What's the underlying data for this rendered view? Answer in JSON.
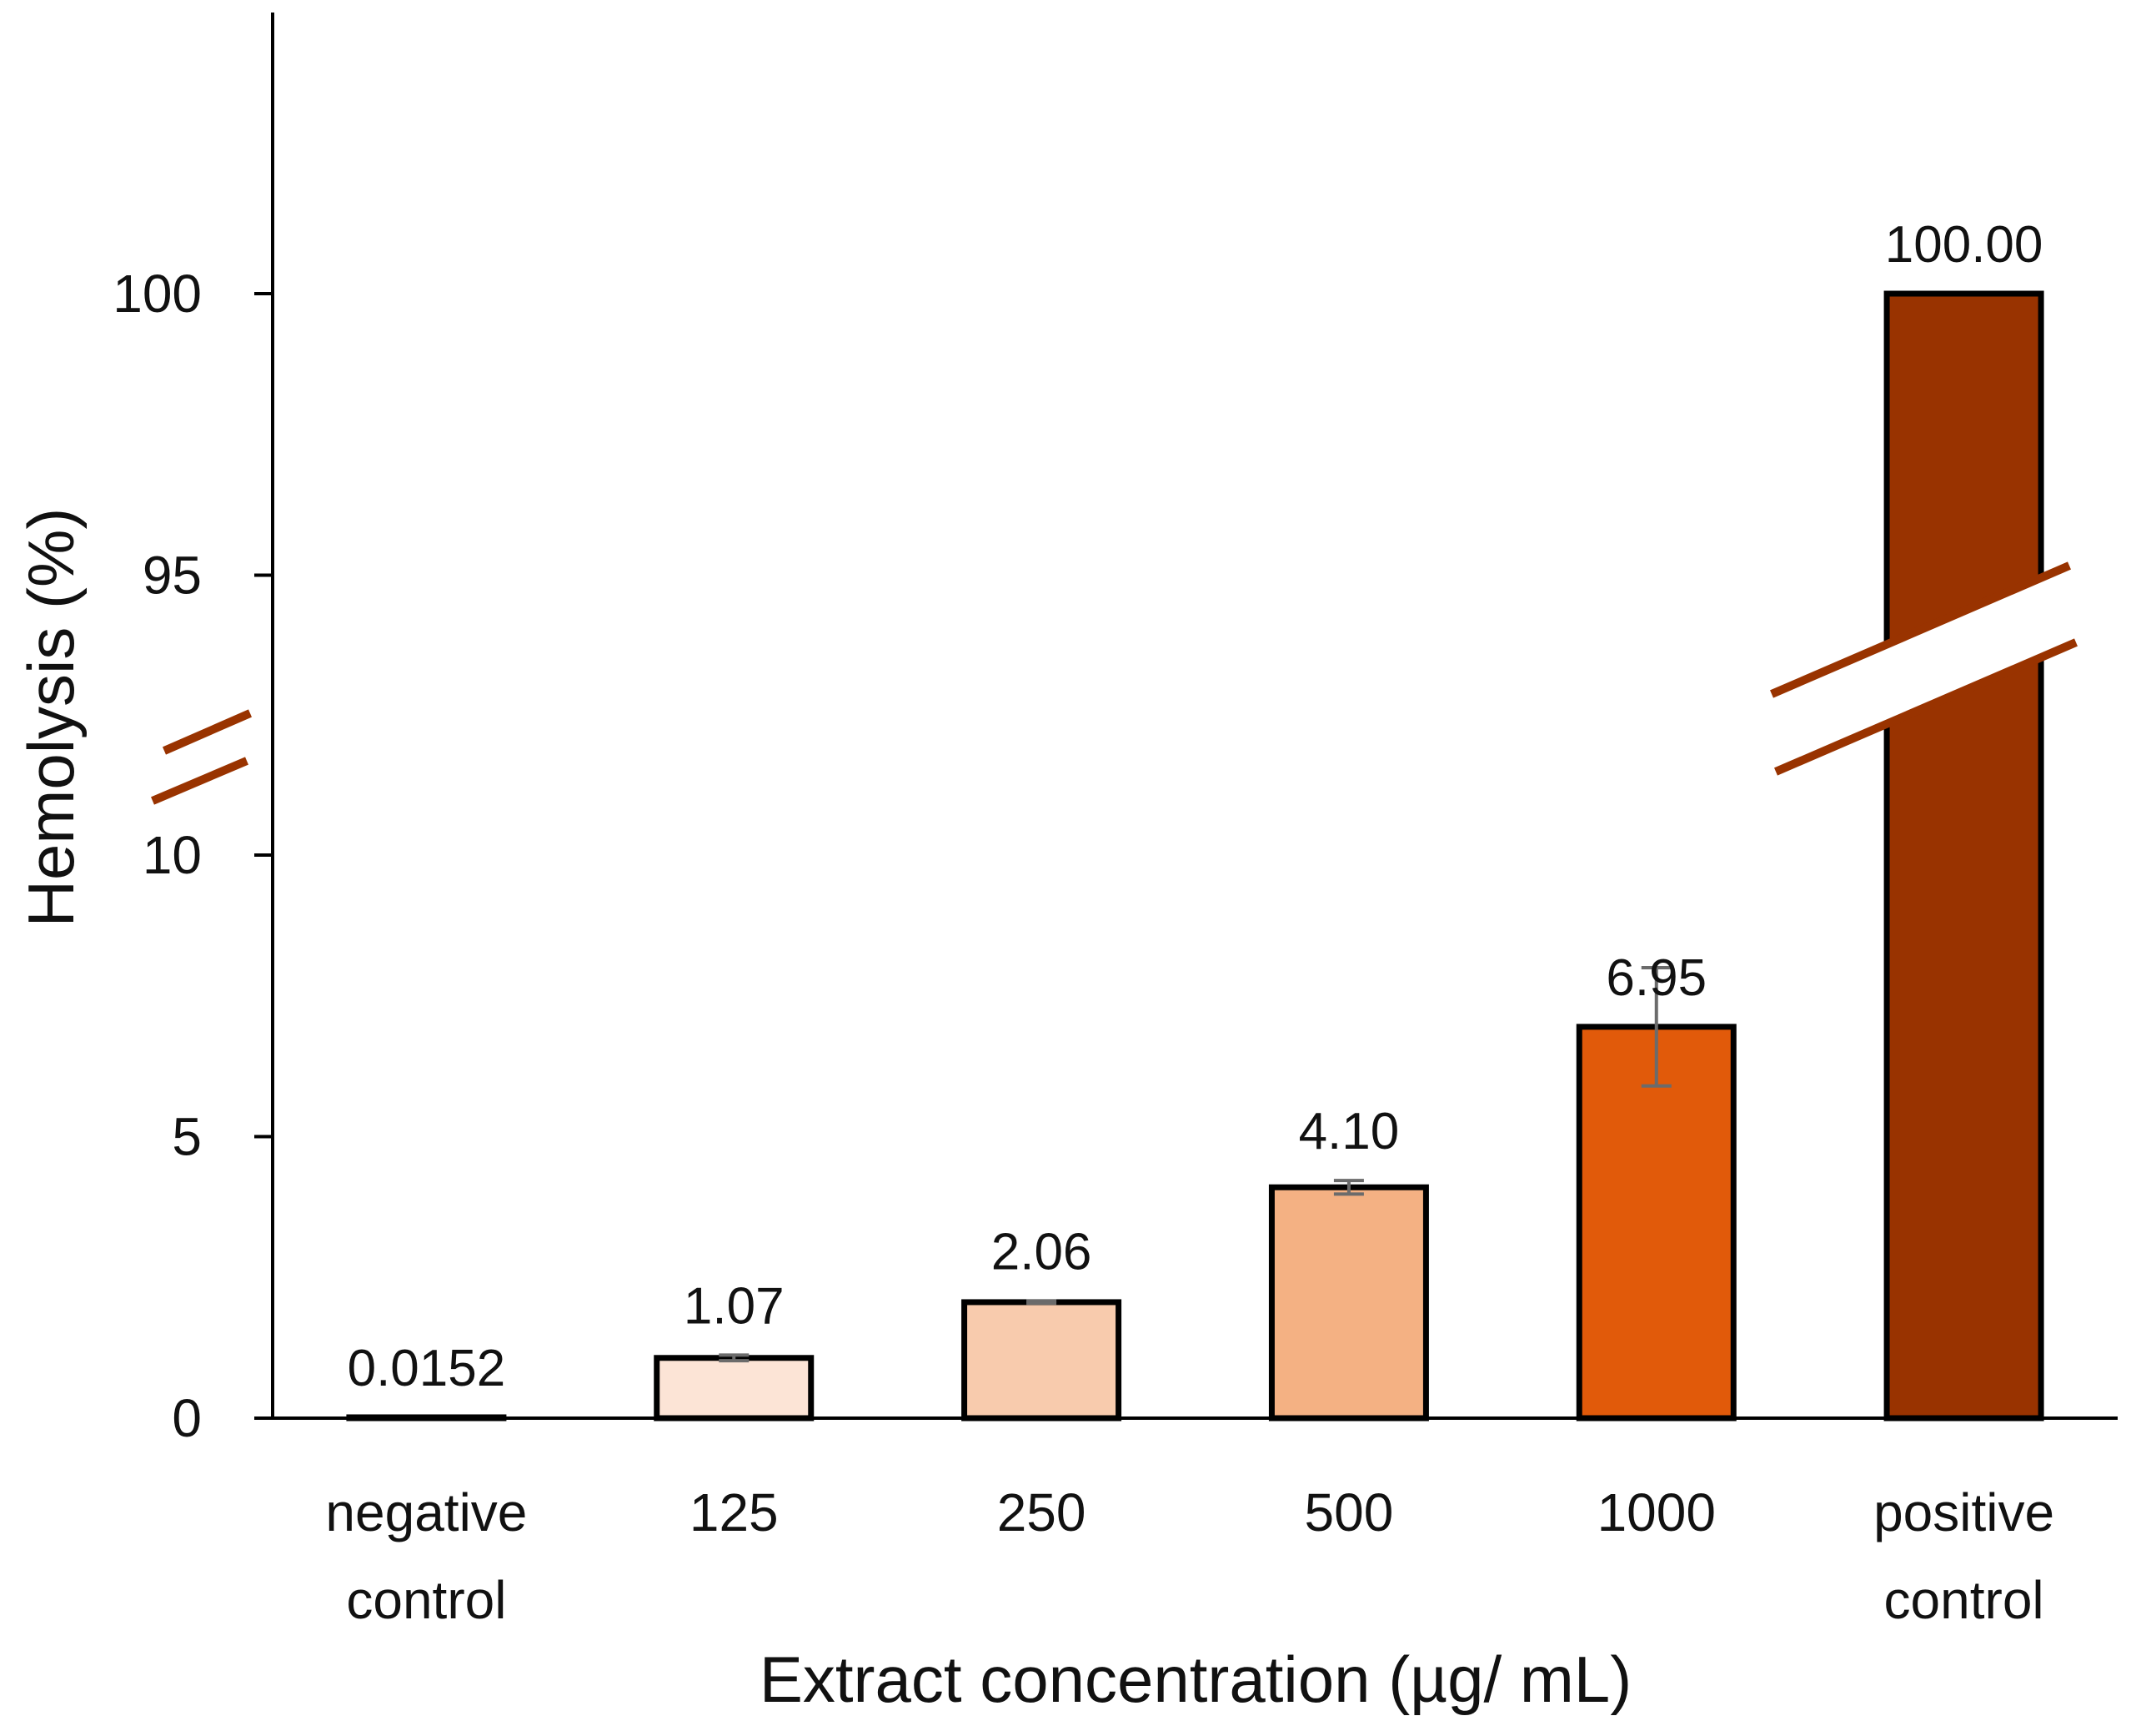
{
  "chart_data": {
    "type": "bar",
    "title": "",
    "xlabel": "Extract concentration (µg/ mL)",
    "ylabel": "Hemolysis (%)",
    "categories": [
      [
        "negative",
        "control"
      ],
      [
        "125"
      ],
      [
        "250"
      ],
      [
        "500"
      ],
      [
        "1000"
      ],
      [
        "positive",
        "control"
      ]
    ],
    "values": [
      0.0152,
      1.07,
      2.06,
      4.1,
      6.95,
      100.0
    ],
    "value_labels": [
      "0.0152",
      "1.07",
      "2.06",
      "4.10",
      "6.95",
      "100.00"
    ],
    "error_bars": [
      0,
      0.05,
      0.02,
      0.12,
      1.05,
      0
    ],
    "bar_colors": [
      "#fce4d6",
      "#fce4d6",
      "#f8cbad",
      "#f4b183",
      "#e15a0a",
      "#993300"
    ],
    "break_color": "#993300",
    "y_axis_segments": [
      {
        "range": [
          0,
          12
        ],
        "ticks": [
          0,
          5,
          10
        ]
      },
      {
        "range": [
          92.5,
          105
        ],
        "ticks": [
          95,
          100
        ]
      }
    ],
    "y_tick_labels": [
      "0",
      "5",
      "10",
      "95",
      "100"
    ],
    "axis_break": {
      "between": [
        12,
        92.5
      ]
    },
    "grid": false,
    "legend": "none"
  }
}
